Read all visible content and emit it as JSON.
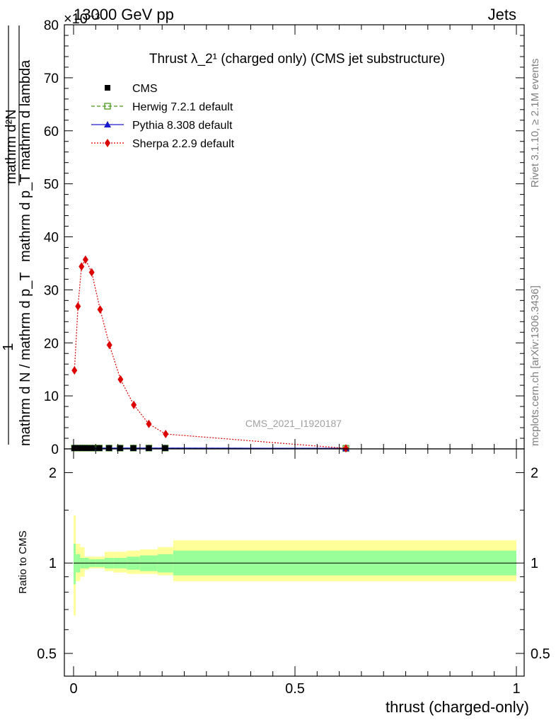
{
  "header": {
    "left": "13000 GeV pp",
    "right": "Jets",
    "exponent": "×10⁻³",
    "side_top": "Rivet 3.1.10, ≥ 2.1M events",
    "side_bottom": "mcplots.cern.ch [arXiv:1306.3436]",
    "watermark": "CMS_2021_I1920187"
  },
  "chart_data": [
    {
      "type": "line",
      "panel": "main",
      "title": "Thrust λ_2¹ (charged only) (CMS jet substructure)",
      "ylabel_numerator": "mathrm d²N",
      "ylabel_denominator": "mathrm d p_T mathrm d lambda",
      "ylabel_prefix_numerator": "1",
      "ylabel_prefix_denominator": "mathrm d N / mathrm d p_T",
      "xlabel": "thrust (charged-only)",
      "xlim": [
        0,
        1
      ],
      "ylim": [
        0,
        80
      ],
      "y_scale_note": "x10^-3",
      "y_ticks": [
        0,
        10,
        20,
        30,
        40,
        50,
        60,
        70,
        80
      ],
      "legend_position": "top-left",
      "series": [
        {
          "name": "CMS",
          "color": "#000000",
          "marker": "square",
          "x": [
            0.002,
            0.01,
            0.02,
            0.03,
            0.042,
            0.058,
            0.08,
            0.105,
            0.135,
            0.17,
            0.207
          ],
          "y": [
            0.15,
            0.15,
            0.15,
            0.15,
            0.15,
            0.15,
            0.15,
            0.15,
            0.15,
            0.15,
            0.15
          ]
        },
        {
          "name": "Herwig 7.2.1 default",
          "color": "#4a9a1a",
          "marker": "open-square",
          "dash": "dashed",
          "x": [
            0.002,
            0.01,
            0.02,
            0.03,
            0.042,
            0.058,
            0.08,
            0.105,
            0.135,
            0.17,
            0.207,
            0.615
          ],
          "y": [
            0.15,
            0.15,
            0.15,
            0.15,
            0.15,
            0.15,
            0.15,
            0.15,
            0.15,
            0.15,
            0.15,
            0.1
          ]
        },
        {
          "name": "Pythia 8.308 default",
          "color": "#1a1acc",
          "marker": "triangle",
          "dash": "solid",
          "x": [
            0.002,
            0.01,
            0.02,
            0.03,
            0.042,
            0.058,
            0.08,
            0.105,
            0.135,
            0.17,
            0.207,
            0.615
          ],
          "y": [
            0.15,
            0.15,
            0.15,
            0.15,
            0.15,
            0.15,
            0.15,
            0.15,
            0.15,
            0.15,
            0.15,
            0.1
          ]
        },
        {
          "name": "Sherpa 2.2.9 default",
          "color": "#dd0000",
          "marker": "diamond",
          "dash": "dotted",
          "x": [
            0.002,
            0.01,
            0.018,
            0.027,
            0.041,
            0.06,
            0.081,
            0.106,
            0.136,
            0.17,
            0.208,
            0.615
          ],
          "y": [
            14.8,
            26.9,
            34.4,
            35.7,
            33.3,
            26.3,
            19.6,
            13.1,
            8.3,
            4.7,
            2.8,
            0.1
          ]
        }
      ]
    },
    {
      "type": "area",
      "panel": "ratio",
      "ylabel": "Ratio to CMS",
      "xlim": [
        0,
        1
      ],
      "ylim": [
        0.42,
        2.4
      ],
      "y_scale": "log",
      "y_ticks": [
        0.5,
        1,
        2
      ],
      "x_ticks": [
        0,
        0.5,
        1
      ],
      "reference_line": 1,
      "bands": {
        "x_edges": [
          0,
          0.005,
          0.015,
          0.025,
          0.035,
          0.05,
          0.07,
          0.09,
          0.12,
          0.15,
          0.19,
          0.225,
          1.0
        ],
        "stat_low": [
          0.85,
          0.93,
          0.96,
          0.96,
          0.97,
          0.97,
          0.96,
          0.96,
          0.95,
          0.94,
          0.93,
          0.91
        ],
        "stat_high": [
          1.16,
          1.07,
          1.04,
          1.04,
          1.03,
          1.03,
          1.04,
          1.04,
          1.05,
          1.06,
          1.07,
          1.1
        ],
        "total_low": [
          0.67,
          0.87,
          0.9,
          0.95,
          0.96,
          0.96,
          0.94,
          0.93,
          0.92,
          0.92,
          0.91,
          0.87
        ],
        "total_high": [
          1.44,
          1.16,
          1.13,
          1.05,
          1.05,
          1.05,
          1.09,
          1.09,
          1.1,
          1.11,
          1.13,
          1.19
        ],
        "stat_color": "#99ff99",
        "total_color": "#ffff99"
      }
    }
  ]
}
